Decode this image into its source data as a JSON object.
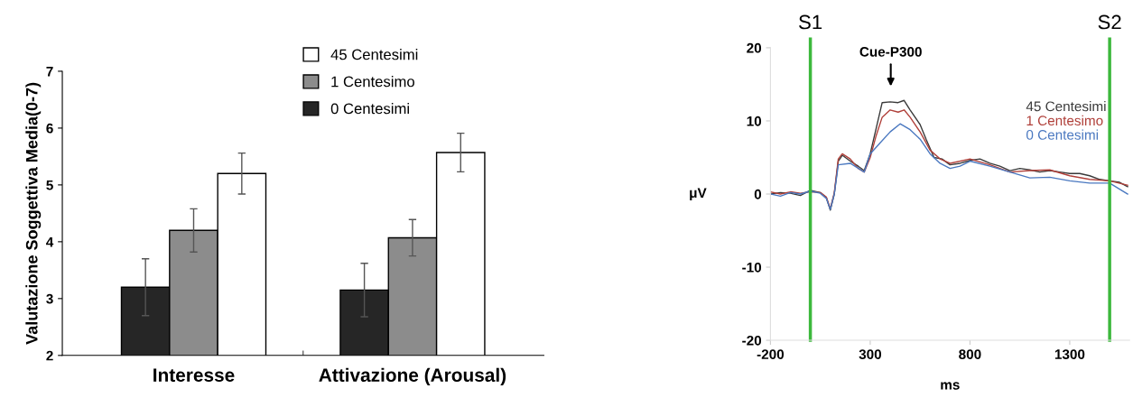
{
  "chart_data": [
    {
      "type": "bar",
      "ylabel": "Valutazione Soggettiva Media(0-7)",
      "categories": [
        "Interesse",
        "Attivazione (Arousal)"
      ],
      "ylim": [
        2,
        7
      ],
      "yticks": [
        2,
        3,
        4,
        5,
        6,
        7
      ],
      "grid": false,
      "legend": "top",
      "series": [
        {
          "name": "0 Centesimi",
          "color": "#262626",
          "values": [
            3.2,
            3.15
          ],
          "errors": [
            0.5,
            0.47
          ]
        },
        {
          "name": "1 Centesimo",
          "color": "#8c8c8c",
          "values": [
            4.2,
            4.07
          ],
          "errors": [
            0.38,
            0.32
          ]
        },
        {
          "name": "45 Centesimi",
          "color": "#ffffff",
          "values": [
            5.2,
            5.57
          ],
          "errors": [
            0.36,
            0.34
          ]
        }
      ]
    },
    {
      "type": "line",
      "xlabel": "ms",
      "ylabel": "μV",
      "xlim": [
        -200,
        1600
      ],
      "xticks": [
        -200,
        300,
        800,
        1300
      ],
      "ylim": [
        -20,
        20
      ],
      "yticks": [
        -20,
        -10,
        0,
        10,
        20
      ],
      "grid": false,
      "legend": "top right",
      "marker": "none",
      "line_style": "solid",
      "ref_lines": [
        {
          "axis": "x",
          "value": 0,
          "label": "S1",
          "color": "#3cb83c"
        },
        {
          "axis": "x",
          "value": 1500,
          "label": "S2",
          "color": "#3cb83c"
        }
      ],
      "annotations": [
        "Cue-P300"
      ],
      "series": [
        {
          "name": "45 Centesimi",
          "color": "#3a3a3a",
          "x": [
            -200,
            -150,
            -100,
            -50,
            0,
            50,
            80,
            100,
            120,
            140,
            160,
            200,
            240,
            270,
            300,
            330,
            360,
            400,
            440,
            470,
            500,
            550,
            580,
            620,
            660,
            700,
            750,
            800,
            850,
            900,
            950,
            1000,
            1050,
            1100,
            1150,
            1200,
            1250,
            1300,
            1350,
            1400,
            1450,
            1500,
            1550,
            1590
          ],
          "values": [
            0,
            0.2,
            0.1,
            -0.2,
            0.5,
            0.2,
            -0.5,
            -2.2,
            0,
            4.5,
            5.3,
            4.5,
            3.8,
            3.2,
            5.5,
            9,
            12.5,
            12.6,
            12.5,
            12.8,
            11.5,
            9.5,
            7.5,
            5,
            4.8,
            4,
            4.2,
            4.6,
            4.8,
            4.2,
            3.8,
            3.2,
            3.5,
            3.3,
            3,
            3.2,
            3,
            2.8,
            2.8,
            2.5,
            2,
            1.8,
            1.6,
            1
          ]
        },
        {
          "name": "1 Centesimo",
          "color": "#b0403a",
          "x": [
            -200,
            -150,
            -100,
            -50,
            0,
            50,
            80,
            100,
            120,
            140,
            160,
            200,
            240,
            270,
            300,
            330,
            360,
            400,
            440,
            470,
            500,
            550,
            600,
            650,
            700,
            800,
            900,
            1000,
            1100,
            1200,
            1300,
            1400,
            1500,
            1590
          ],
          "values": [
            0.3,
            0,
            0.3,
            0.1,
            0.3,
            0.2,
            -0.4,
            -2,
            0.2,
            4.8,
            5.5,
            4.8,
            3.5,
            3,
            5,
            8,
            10.5,
            11.5,
            11.2,
            11.5,
            10.5,
            8.5,
            6,
            4.8,
            4.2,
            4.8,
            4,
            3,
            3.2,
            3.3,
            2.5,
            2,
            1.8,
            1.2
          ]
        },
        {
          "name": "0 Centesimi",
          "color": "#4a78c0",
          "x": [
            -200,
            -150,
            -100,
            -50,
            0,
            50,
            80,
            100,
            120,
            140,
            200,
            270,
            300,
            350,
            400,
            450,
            500,
            550,
            600,
            650,
            700,
            750,
            800,
            900,
            1000,
            1100,
            1200,
            1300,
            1400,
            1500,
            1590
          ],
          "values": [
            0,
            -0.3,
            0.2,
            0,
            0.4,
            0.1,
            -0.6,
            -2.1,
            0,
            4,
            4.2,
            3,
            5.5,
            7,
            8.5,
            9.6,
            8.8,
            7.5,
            5.5,
            4.2,
            3.5,
            3.8,
            4.5,
            3.8,
            3,
            2.2,
            2.3,
            1.8,
            1.5,
            1.5,
            0
          ]
        }
      ]
    }
  ]
}
